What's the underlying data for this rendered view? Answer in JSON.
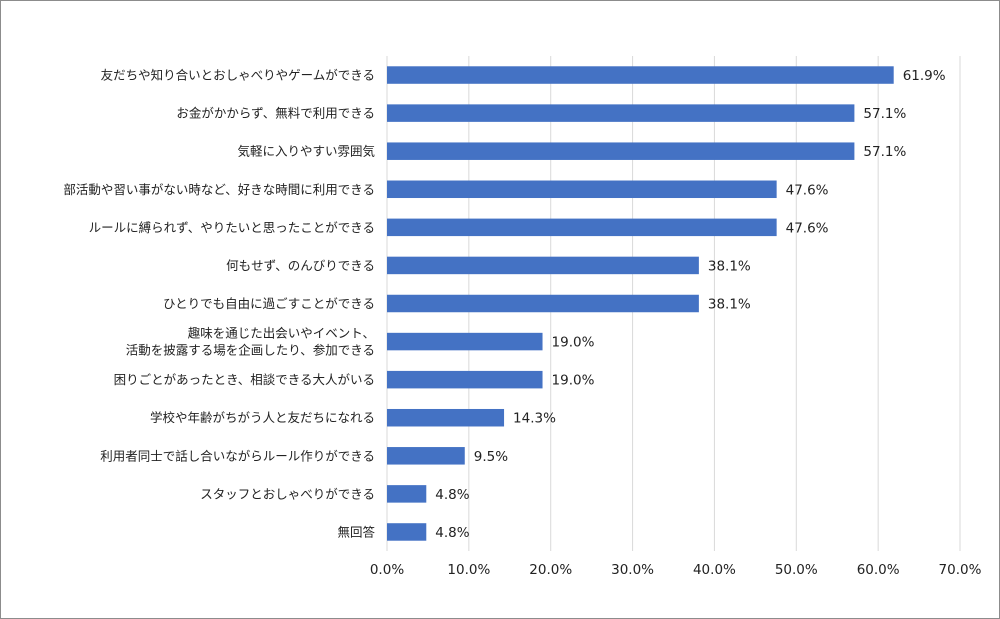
{
  "chart_data": {
    "type": "bar",
    "orientation": "horizontal",
    "categories": [
      [
        "友だちや知り合いとおしゃべりやゲームができる"
      ],
      [
        "お金がかからず、無料で利用できる"
      ],
      [
        "気軽に入りやすい雰囲気"
      ],
      [
        "部活動や習い事がない時など、好きな時間に利用できる"
      ],
      [
        "ルールに縛られず、やりたいと思ったことができる"
      ],
      [
        "何もせず、のんびりできる"
      ],
      [
        "ひとりでも自由に過ごすことができる"
      ],
      [
        "趣味を通じた出会いやイベント、",
        "活動を披露する場を企画したり、参加できる"
      ],
      [
        "困りごとがあったとき、相談できる大人がいる"
      ],
      [
        "学校や年齢がちがう人と友だちになれる"
      ],
      [
        "利用者同士で話し合いながらルール作りができる"
      ],
      [
        "スタッフとおしゃべりができる"
      ],
      [
        "無回答"
      ]
    ],
    "values": [
      61.9,
      57.1,
      57.1,
      47.6,
      47.6,
      38.1,
      38.1,
      19.0,
      19.0,
      14.3,
      9.5,
      4.8,
      4.8
    ],
    "value_labels": [
      "61.9%",
      "57.1%",
      "57.1%",
      "47.6%",
      "47.6%",
      "38.1%",
      "38.1%",
      "19.0%",
      "19.0%",
      "14.3%",
      "9.5%",
      "4.8%",
      "4.8%"
    ],
    "xlim": [
      0,
      70
    ],
    "x_ticks": [
      0,
      10,
      20,
      30,
      40,
      50,
      60,
      70
    ],
    "x_tick_labels": [
      "0.0%",
      "10.0%",
      "20.0%",
      "30.0%",
      "40.0%",
      "50.0%",
      "60.0%",
      "70.0%"
    ],
    "grid": "vertical",
    "legend": "none",
    "title": "",
    "xlabel": "",
    "ylabel": "",
    "bar_color": "#4472c4"
  }
}
